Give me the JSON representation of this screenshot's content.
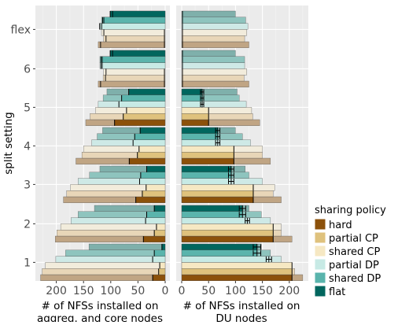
{
  "chart_data": {
    "type": "bar",
    "orientation": "horizontal",
    "y_title": "split setting",
    "categories": [
      "1",
      "2",
      "3",
      "4",
      "5",
      "6",
      "flex"
    ],
    "legend": {
      "title": "sharing  policy",
      "placement": "right",
      "entries": [
        {
          "name": "hard",
          "color": "#8c510a"
        },
        {
          "name": "partial CP",
          "color": "#dfc27d"
        },
        {
          "name": "shared CP",
          "color": "#f6e8c3"
        },
        {
          "name": "partial DP",
          "color": "#c7eae5"
        },
        {
          "name": "shared DP",
          "color": "#5ab4ac"
        },
        {
          "name": "flat",
          "color": "#01665e"
        }
      ]
    },
    "panels": [
      {
        "id": "left",
        "xlabel": [
          "# of NFSs installed on",
          "aggreg. and core nodes"
        ],
        "reversed": true,
        "xlim": [
          0,
          240
        ],
        "ticks": [
          0,
          50,
          100,
          150,
          200
        ],
        "series": [
          {
            "name": "hard",
            "tint": [
              192,
              165,
              132
            ],
            "values": [
              229,
              202,
              187,
              164,
              146,
              123,
              123
            ],
            "solid": [
              23,
              40,
              54,
              66,
              93,
              0,
              0
            ]
          },
          {
            "name": "partial CP",
            "tint": [
              232,
              214,
              184
            ],
            "values": [
              226,
              199,
              181,
              153,
              138,
              114,
              113
            ],
            "solid": [
              12,
              20,
              42,
              51,
              77,
              0,
              0
            ]
          },
          {
            "name": "shared CP",
            "tint": [
              242,
              236,
              220
            ],
            "values": [
              220,
              192,
              174,
              150,
              128,
              113,
              117
            ],
            "solid": [
              10,
              16,
              35,
              48,
              71,
              0,
              0
            ]
          },
          {
            "name": "partial DP",
            "tint": [
              206,
              233,
              230
            ],
            "values": [
              201,
              173,
              160,
              135,
              123,
              120,
              121
            ],
            "solid": [
              23,
              36,
              47,
              59,
              85,
              118,
              120
            ]
          },
          {
            "name": "shared DP",
            "tint": [
              142,
              196,
              190
            ],
            "values": [
              183,
              160,
              139,
              125,
              114,
              120,
              117
            ],
            "solid": [
              20,
              34,
              45,
              56,
              80,
              118,
              115
            ]
          },
          {
            "name": "flat",
            "tint": [
              127,
              176,
              171
            ],
            "values": [
              140,
              130,
              120,
              115,
              107,
              101,
              101
            ],
            "solid": [
              6,
              20,
              34,
              46,
              67,
              101,
              101
            ]
          }
        ]
      },
      {
        "id": "right",
        "xlabel": [
          "# of NFSs installed on",
          "DU nodes"
        ],
        "reversed": false,
        "xlim": [
          0,
          232
        ],
        "ticks": [
          0,
          50,
          100,
          150,
          200
        ],
        "series": [
          {
            "name": "hard",
            "tint": [
              192,
              165,
              132
            ],
            "values": [
              225,
              205,
              185,
              165,
              145,
              125,
              125
            ],
            "solid": [
              205,
              170,
              133,
              97,
              50,
              0,
              0
            ]
          },
          {
            "name": "partial CP",
            "tint": [
              232,
              214,
              184
            ],
            "values": [
              210,
              185,
              170,
              150,
              132,
              116,
              117
            ],
            "solid": [
              205,
              170,
              133,
              97,
              50,
              0,
              0
            ]
          },
          {
            "name": "shared CP",
            "tint": [
              242,
              236,
              220
            ],
            "values": [
              205,
              185,
              173,
              150,
              130,
              121,
              121
            ],
            "solid": [
              205,
              170,
              133,
              97,
              50,
              0,
              0
            ]
          },
          {
            "name": "partial DP",
            "tint": [
              206,
              233,
              230
            ],
            "values": [
              185,
              165,
              150,
              128,
              120,
              117,
              123
            ],
            "solid": [
              162,
              122,
              92,
              67,
              38,
              0,
              0
            ]
          },
          {
            "name": "shared DP",
            "tint": [
              142,
              196,
              190
            ],
            "values": [
              165,
              148,
              125,
              113,
              107,
              117,
              119
            ],
            "solid": [
              140,
              113,
              92,
              67,
              38,
              0,
              0
            ]
          },
          {
            "name": "flat",
            "tint": [
              127,
              176,
              171
            ],
            "values": [
              148,
              125,
              118,
              100,
              103,
              100,
              100
            ],
            "solid": [
              140,
              113,
              92,
              67,
              38,
              0,
              0
            ]
          }
        ],
        "error_bars": [
          {
            "category": "1",
            "series": "flat",
            "low": 133,
            "high": 147
          },
          {
            "category": "1",
            "series": "shared DP",
            "low": 133,
            "high": 147
          },
          {
            "category": "1",
            "series": "partial DP",
            "low": 157,
            "high": 167
          },
          {
            "category": "2",
            "series": "flat",
            "low": 107,
            "high": 119
          },
          {
            "category": "2",
            "series": "shared DP",
            "low": 107,
            "high": 119
          },
          {
            "category": "2",
            "series": "partial DP",
            "low": 118,
            "high": 126
          },
          {
            "category": "3",
            "series": "flat",
            "low": 87,
            "high": 97
          },
          {
            "category": "3",
            "series": "shared DP",
            "low": 87,
            "high": 97
          },
          {
            "category": "3",
            "series": "partial DP",
            "low": 87,
            "high": 97
          },
          {
            "category": "4",
            "series": "flat",
            "low": 63,
            "high": 71
          },
          {
            "category": "4",
            "series": "shared DP",
            "low": 63,
            "high": 71
          },
          {
            "category": "4",
            "series": "partial DP",
            "low": 63,
            "high": 71
          },
          {
            "category": "5",
            "series": "flat",
            "low": 35,
            "high": 41
          },
          {
            "category": "5",
            "series": "shared DP",
            "low": 35,
            "high": 41
          },
          {
            "category": "5",
            "series": "partial DP",
            "low": 35,
            "high": 41
          }
        ]
      }
    ]
  }
}
